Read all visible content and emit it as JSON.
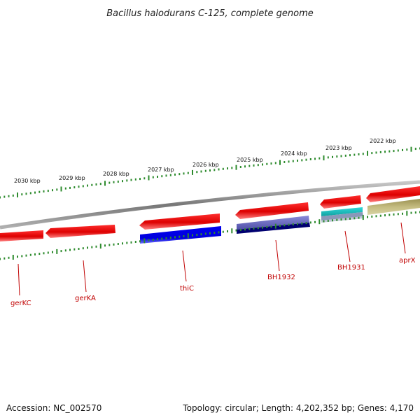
{
  "title": "Bacillus halodurans C-125, complete genome",
  "footer": {
    "accession": "Accession: NC_002570",
    "summary": "Topology: circular; Length: 4,202,352 bp; Genes: 4,170"
  },
  "colors": {
    "backbone": "#8c8c8c",
    "tick": "#2e8b2e",
    "label": "#c00000",
    "forward_gene": "#e00000",
    "thiC": "#0000ee",
    "BH1932_a": "#7070c0",
    "BH1932_b": "#000070",
    "BH1931_a": "#20c0c0",
    "BH1931_b": "#8090b0",
    "aprX": "#b8b070"
  },
  "scale_labels": [
    {
      "text": "2030 kbp"
    },
    {
      "text": "2029 kbp"
    },
    {
      "text": "2028 kbp"
    },
    {
      "text": "2027 kbp"
    },
    {
      "text": "2026 kbp"
    },
    {
      "text": "2025 kbp"
    },
    {
      "text": "2024 kbp"
    },
    {
      "text": "2023 kbp"
    },
    {
      "text": "2022 kbp"
    }
  ],
  "gene_labels": [
    {
      "text": "gerKC"
    },
    {
      "text": "gerKA"
    },
    {
      "text": "thiC"
    },
    {
      "text": "BH1932"
    },
    {
      "text": "BH1931"
    },
    {
      "text": "aprX"
    }
  ]
}
